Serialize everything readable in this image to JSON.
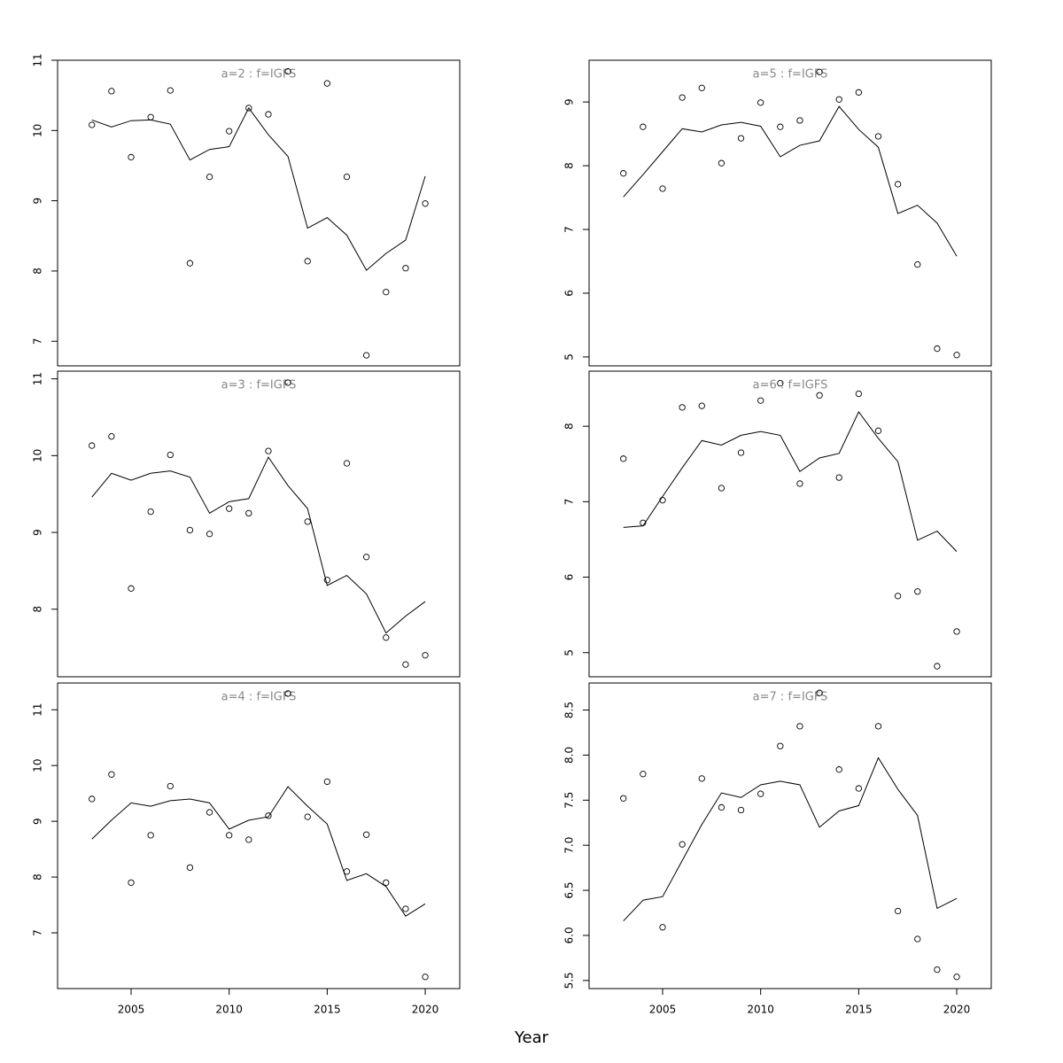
{
  "xlabel": "Year",
  "chart_data": [
    {
      "type": "scatter-line",
      "title": "a=2 : f=IGFS",
      "x": [
        2003,
        2004,
        2005,
        2006,
        2007,
        2008,
        2009,
        2010,
        2011,
        2012,
        2013,
        2014,
        2015,
        2016,
        2017,
        2018,
        2019,
        2020
      ],
      "series": [
        {
          "style": "points",
          "values": [
            10.08,
            10.56,
            9.62,
            10.19,
            10.57,
            8.11,
            9.34,
            9.99,
            10.32,
            10.23,
            10.84,
            8.14,
            10.67,
            9.34,
            6.8,
            7.7,
            8.04,
            8.96
          ]
        },
        {
          "style": "line",
          "values": [
            10.15,
            10.05,
            10.14,
            10.15,
            10.09,
            9.58,
            9.73,
            9.77,
            10.32,
            9.94,
            9.63,
            8.61,
            8.76,
            8.51,
            8.01,
            8.25,
            8.44,
            9.35
          ]
        }
      ],
      "xlim": [
        2001.25,
        2021.76
      ],
      "ylim": [
        6.65,
        11.0
      ],
      "yticks": [
        7,
        8,
        9,
        10,
        11
      ]
    },
    {
      "type": "scatter-line",
      "title": "a=5 : f=IGFS",
      "x": [
        2003,
        2004,
        2005,
        2006,
        2007,
        2008,
        2009,
        2010,
        2011,
        2012,
        2013,
        2014,
        2015,
        2016,
        2017,
        2018,
        2019,
        2020
      ],
      "series": [
        {
          "style": "points",
          "values": [
            7.88,
            8.61,
            7.64,
            9.07,
            9.22,
            8.04,
            8.43,
            8.99,
            8.61,
            8.71,
            9.47,
            9.04,
            9.15,
            8.46,
            7.71,
            6.45,
            5.13,
            5.03
          ]
        },
        {
          "style": "line",
          "values": [
            7.51,
            7.86,
            8.22,
            8.58,
            8.53,
            8.64,
            8.68,
            8.62,
            8.14,
            8.32,
            8.39,
            8.93,
            8.57,
            8.29,
            7.25,
            7.38,
            7.1,
            6.58
          ]
        }
      ],
      "xlim": [
        2001.25,
        2021.76
      ],
      "ylim": [
        4.86,
        9.655
      ],
      "yticks": [
        5,
        6,
        7,
        8,
        9
      ]
    },
    {
      "type": "scatter-line",
      "title": "a=3 : f=IGFS",
      "x": [
        2003,
        2004,
        2005,
        2006,
        2007,
        2008,
        2009,
        2010,
        2011,
        2012,
        2013,
        2014,
        2015,
        2016,
        2017,
        2018,
        2019,
        2020
      ],
      "series": [
        {
          "style": "points",
          "values": [
            10.13,
            10.25,
            8.27,
            9.27,
            10.01,
            9.03,
            8.98,
            9.31,
            9.25,
            10.06,
            10.95,
            9.14,
            8.38,
            9.9,
            8.68,
            7.63,
            7.28,
            7.4
          ]
        },
        {
          "style": "line",
          "values": [
            9.46,
            9.77,
            9.68,
            9.77,
            9.8,
            9.72,
            9.25,
            9.4,
            9.44,
            9.98,
            9.61,
            9.31,
            8.31,
            8.44,
            8.2,
            7.69,
            7.91,
            8.1
          ]
        }
      ],
      "xlim": [
        2001.25,
        2021.76
      ],
      "ylim": [
        7.12,
        11.1
      ],
      "yticks": [
        8,
        9,
        10,
        11
      ]
    },
    {
      "type": "scatter-line",
      "title": "a=6 : f=IGFS",
      "x": [
        2003,
        2004,
        2005,
        2006,
        2007,
        2008,
        2009,
        2010,
        2011,
        2012,
        2013,
        2014,
        2015,
        2016,
        2017,
        2018,
        2019,
        2020
      ],
      "series": [
        {
          "style": "points",
          "values": [
            7.57,
            6.72,
            7.02,
            8.25,
            8.27,
            7.18,
            7.65,
            8.34,
            8.57,
            7.24,
            8.41,
            7.32,
            8.43,
            7.94,
            5.75,
            5.81,
            4.82,
            5.28
          ]
        },
        {
          "style": "line",
          "values": [
            6.66,
            6.68,
            7.07,
            7.45,
            7.81,
            7.75,
            7.88,
            7.93,
            7.88,
            7.4,
            7.58,
            7.64,
            8.19,
            7.84,
            7.53,
            6.49,
            6.61,
            6.34
          ]
        }
      ],
      "xlim": [
        2001.25,
        2021.76
      ],
      "ylim": [
        4.68,
        8.73
      ],
      "yticks": [
        5,
        6,
        7,
        8
      ]
    },
    {
      "type": "scatter-line",
      "title": "a=4 : f=IGFS",
      "x": [
        2003,
        2004,
        2005,
        2006,
        2007,
        2008,
        2009,
        2010,
        2011,
        2012,
        2013,
        2014,
        2015,
        2016,
        2017,
        2018,
        2019,
        2020
      ],
      "series": [
        {
          "style": "points",
          "values": [
            9.4,
            9.84,
            7.9,
            8.75,
            9.63,
            8.17,
            9.16,
            8.75,
            8.67,
            9.1,
            11.29,
            9.08,
            9.71,
            8.1,
            8.76,
            7.9,
            7.43,
            6.21
          ]
        },
        {
          "style": "line",
          "values": [
            8.68,
            9.02,
            9.33,
            9.27,
            9.37,
            9.4,
            9.33,
            8.86,
            9.02,
            9.08,
            9.62,
            9.27,
            8.95,
            7.94,
            8.06,
            7.83,
            7.3,
            7.52
          ]
        }
      ],
      "xlim": [
        2001.25,
        2021.76
      ],
      "ylim": [
        6.0,
        11.48
      ],
      "yticks": [
        7,
        8,
        9,
        10,
        11
      ],
      "xticks": [
        2005,
        2010,
        2015,
        2020
      ]
    },
    {
      "type": "scatter-line",
      "title": "a=7 : f=IGFS",
      "x": [
        2003,
        2004,
        2005,
        2006,
        2007,
        2008,
        2009,
        2010,
        2011,
        2012,
        2013,
        2014,
        2015,
        2016,
        2017,
        2018,
        2019,
        2020
      ],
      "series": [
        {
          "style": "points",
          "values": [
            7.52,
            7.79,
            6.09,
            7.01,
            7.74,
            7.42,
            7.39,
            7.57,
            8.1,
            8.32,
            8.69,
            7.84,
            7.63,
            8.32,
            6.27,
            5.96,
            5.62,
            5.54
          ]
        },
        {
          "style": "line",
          "values": [
            6.16,
            6.39,
            6.43,
            6.83,
            7.23,
            7.58,
            7.53,
            7.67,
            7.71,
            7.67,
            7.2,
            7.38,
            7.44,
            7.97,
            7.62,
            7.33,
            6.3,
            6.41
          ]
        }
      ],
      "xlim": [
        2001.25,
        2021.76
      ],
      "ylim": [
        5.41,
        8.8
      ],
      "yticks": [
        {
          "value": 5.5,
          "label": "5.5"
        },
        {
          "value": 6,
          "label": "6.0"
        },
        {
          "value": 6.5,
          "label": "6.5"
        },
        {
          "value": 7,
          "label": "7.0"
        },
        {
          "value": 7.5,
          "label": "7.5"
        },
        {
          "value": 8,
          "label": "8.0"
        },
        {
          "value": 8.5,
          "label": "8.5"
        }
      ],
      "xticks": [
        2005,
        2010,
        2015,
        2020
      ]
    }
  ]
}
